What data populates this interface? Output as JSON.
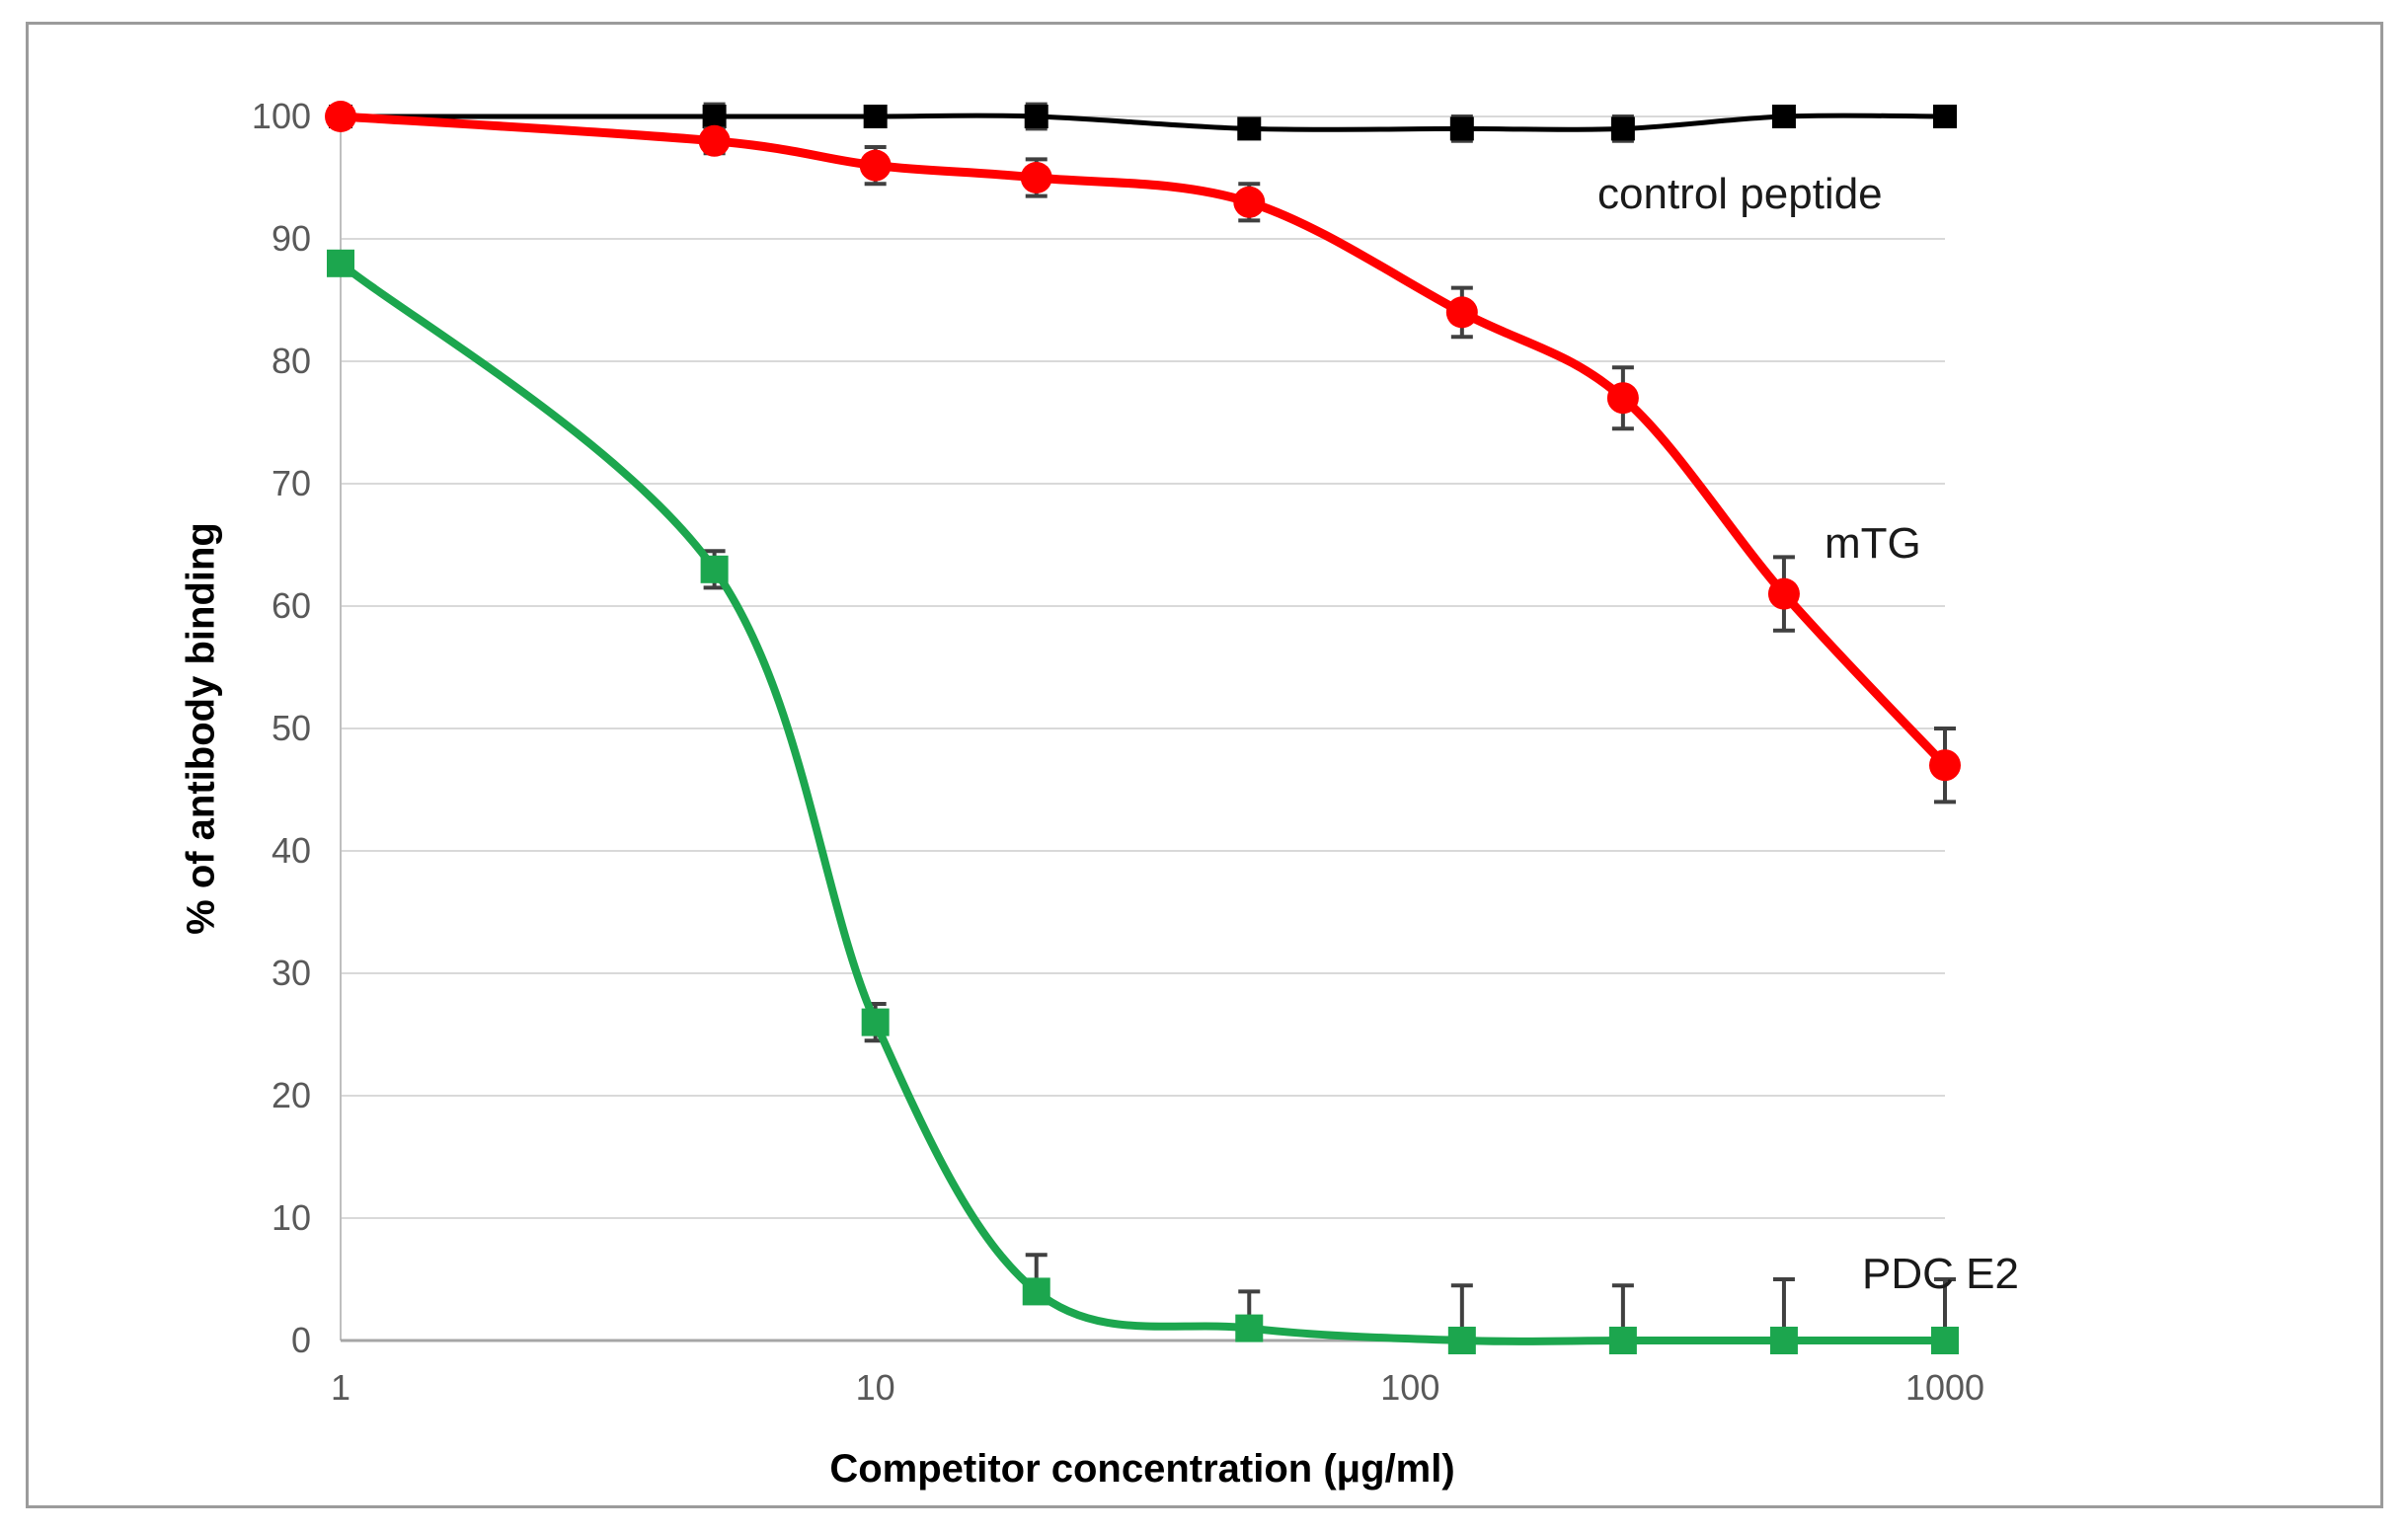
{
  "figure": {
    "background": "#ffffff",
    "border_color": "#9b9b9b"
  },
  "chart_data": {
    "type": "line",
    "x_scale": "log",
    "title": "",
    "xlabel": "Competitor concentration (μg/ml)",
    "ylabel": "% of antibody binding",
    "x": [
      1,
      5,
      10,
      20,
      50,
      125,
      250,
      500,
      1000
    ],
    "x_ticks": [
      1,
      10,
      100,
      1000
    ],
    "y_ticks": [
      0,
      10,
      20,
      30,
      40,
      50,
      60,
      70,
      80,
      90,
      100
    ],
    "xlim": [
      1,
      1000
    ],
    "ylim": [
      0,
      100
    ],
    "grid": "horizontal",
    "legend_position": "inline-annotations",
    "colors": {
      "gridline": "#d9d9d9",
      "axis_line": "#bfbfbf",
      "tick_label": "#595959",
      "error_bar": "#404040"
    },
    "series": [
      {
        "name": "control peptide",
        "color": "#000000",
        "marker": "square",
        "values": [
          100,
          100,
          100,
          100,
          99,
          99,
          99,
          100,
          100
        ],
        "err_up": [
          0.5,
          1,
          0.5,
          1,
          0.5,
          1,
          1,
          0.5,
          0.5
        ],
        "err_down": [
          0.5,
          1,
          0.5,
          1,
          0.5,
          1,
          1,
          0.5,
          0.5
        ]
      },
      {
        "name": "PDC E2",
        "color": "#1ca64e",
        "marker": "square",
        "values": [
          88,
          63,
          26,
          4,
          1,
          0,
          0,
          0,
          0
        ],
        "err_up": [
          0,
          1.5,
          1.5,
          3,
          3,
          4.5,
          4.5,
          5,
          5
        ],
        "err_down": [
          0,
          1.5,
          1.5,
          0,
          0,
          0,
          0,
          0,
          0
        ]
      },
      {
        "name": "mTG",
        "color": "#ff0000",
        "marker": "circle",
        "values": [
          100,
          98,
          96,
          95,
          93,
          84,
          77,
          61,
          47
        ],
        "err_up": [
          0,
          1,
          1.5,
          1.5,
          1.5,
          2,
          2.5,
          3,
          3
        ],
        "err_down": [
          0,
          1,
          1.5,
          1.5,
          1.5,
          2,
          2.5,
          3,
          3
        ]
      }
    ]
  }
}
